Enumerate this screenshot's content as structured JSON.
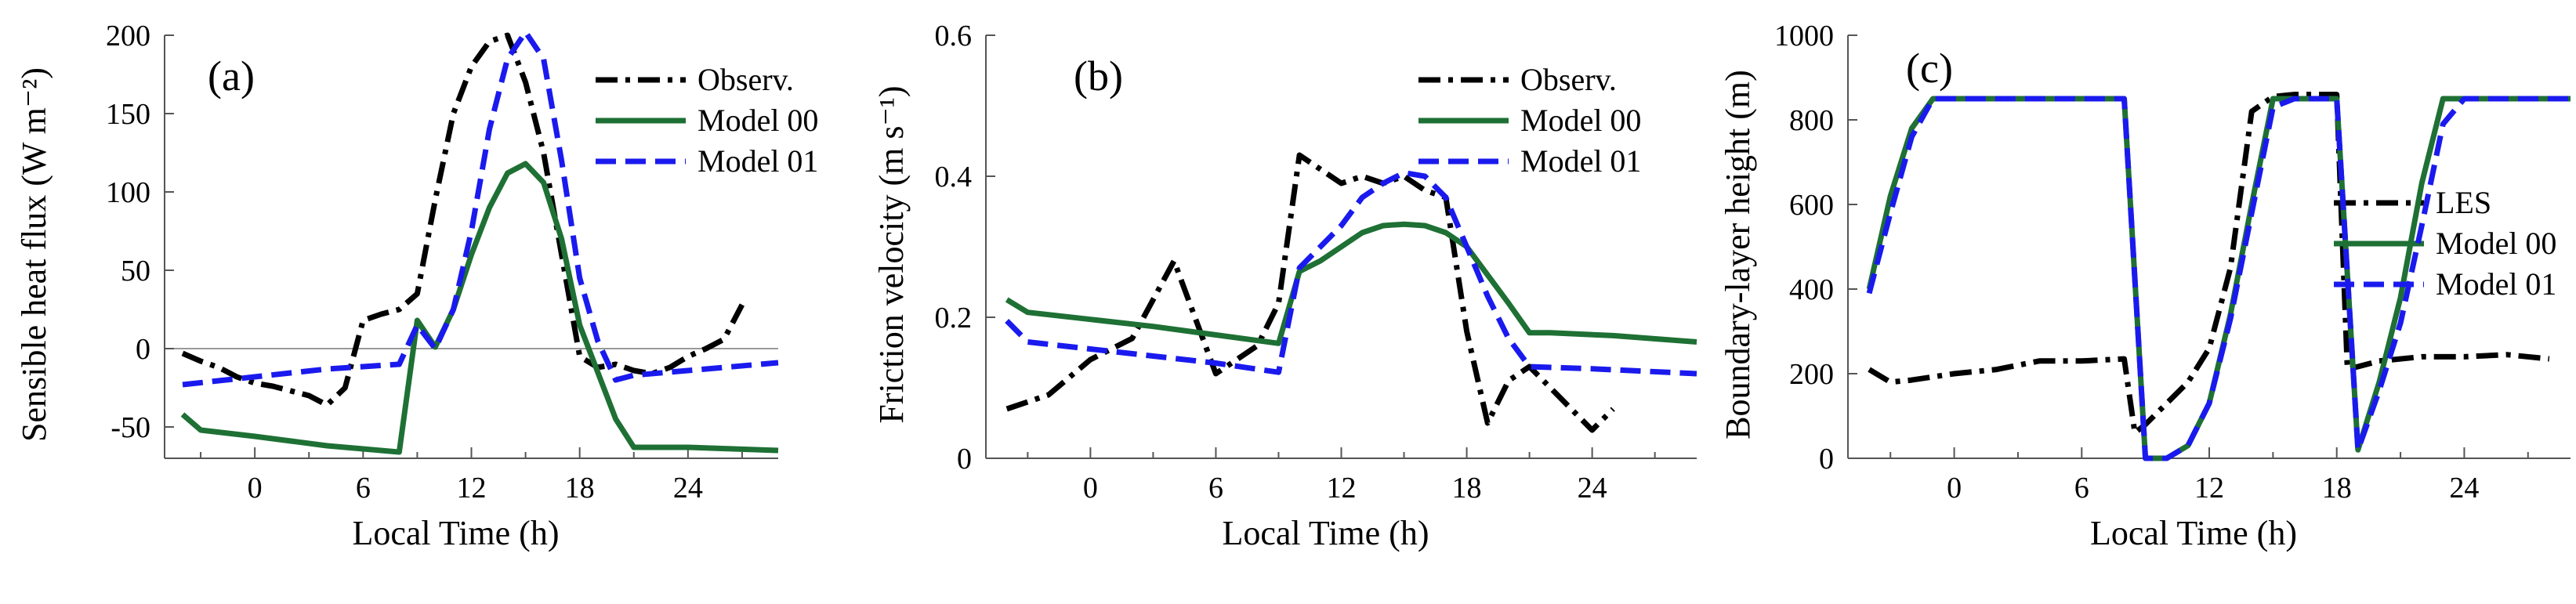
{
  "chart_data": [
    {
      "type": "line",
      "panel_label": "(a)",
      "xlabel": "Local Time (h)",
      "ylabel_main": "Sensible heat flux",
      "ylabel_unit": "(W m⁻²)",
      "xlim": [
        -5,
        29
      ],
      "ylim": [
        -70,
        200
      ],
      "xticks": [
        0,
        6,
        12,
        18,
        24
      ],
      "yticks": [
        -50,
        0,
        50,
        100,
        150,
        200
      ],
      "zero_line": true,
      "legend_position": "top-right",
      "series": [
        {
          "name": "Observ.",
          "color": "#000000",
          "style": "dashdot",
          "x": [
            -4,
            -3,
            -2,
            -1,
            0,
            1,
            2,
            3,
            4,
            5,
            6,
            7,
            8,
            9,
            10,
            11,
            12,
            13,
            14,
            15,
            16,
            17,
            18,
            19,
            20,
            21,
            22,
            23,
            24,
            25,
            26,
            27
          ],
          "y": [
            -3,
            -8,
            -12,
            -18,
            -22,
            -24,
            -27,
            -30,
            -36,
            -25,
            18,
            22,
            25,
            35,
            95,
            150,
            180,
            196,
            200,
            170,
            125,
            60,
            -5,
            -12,
            -10,
            -14,
            -16,
            -12,
            -5,
            0,
            6,
            28
          ]
        },
        {
          "name": "Model 00",
          "color": "#1e7034",
          "style": "solid",
          "x": [
            -4,
            -3,
            0,
            2,
            4,
            6,
            8,
            9,
            10,
            11,
            12,
            13,
            14,
            15,
            16,
            17,
            18,
            19,
            20,
            21,
            24,
            29
          ],
          "y": [
            -42,
            -52,
            -56,
            -59,
            -62,
            -64,
            -66,
            18,
            1,
            25,
            60,
            90,
            112,
            118,
            106,
            70,
            15,
            -15,
            -45,
            -63,
            -63,
            -65
          ]
        },
        {
          "name": "Model 01",
          "color": "#1a1aee",
          "style": "dashed",
          "x": [
            -4,
            0,
            4,
            8,
            9,
            10,
            11,
            12,
            13,
            14,
            15,
            16,
            17,
            18,
            19,
            20,
            21,
            24,
            29
          ],
          "y": [
            -23,
            -18,
            -13,
            -10,
            15,
            0,
            25,
            75,
            140,
            185,
            202,
            185,
            120,
            45,
            5,
            -20,
            -17,
            -14,
            -9
          ]
        }
      ]
    },
    {
      "type": "line",
      "panel_label": "(b)",
      "xlabel": "Local Time (h)",
      "ylabel_main": "Friction velocity",
      "ylabel_unit": "(m s⁻¹)",
      "xlim": [
        -5,
        29
      ],
      "ylim": [
        0,
        0.6
      ],
      "xticks": [
        0,
        6,
        12,
        18,
        24
      ],
      "yticks": [
        0,
        0.2,
        0.4,
        0.6
      ],
      "zero_line": false,
      "legend_position": "top-right",
      "series": [
        {
          "name": "Observ.",
          "color": "#000000",
          "style": "dashdot",
          "x": [
            -4,
            -2,
            0,
            2,
            4,
            6,
            8,
            9,
            10,
            11,
            12,
            13,
            14,
            15,
            16,
            17,
            18,
            19,
            20,
            21,
            22,
            23,
            24,
            25
          ],
          "y": [
            0.07,
            0.09,
            0.14,
            0.17,
            0.28,
            0.12,
            0.16,
            0.22,
            0.43,
            0.41,
            0.39,
            0.4,
            0.39,
            0.4,
            0.38,
            0.37,
            0.18,
            0.05,
            0.11,
            0.13,
            0.1,
            0.07,
            0.04,
            0.07
          ]
        },
        {
          "name": "Model 00",
          "color": "#1e7034",
          "style": "solid",
          "x": [
            -4,
            -3,
            0,
            3,
            6,
            9,
            10,
            11,
            12,
            13,
            14,
            15,
            16,
            17,
            18,
            19,
            20,
            21,
            22,
            25,
            29
          ],
          "y": [
            0.225,
            0.207,
            0.197,
            0.187,
            0.175,
            0.163,
            0.265,
            0.28,
            0.3,
            0.32,
            0.33,
            0.332,
            0.33,
            0.32,
            0.3,
            0.26,
            0.22,
            0.178,
            0.178,
            0.174,
            0.165
          ]
        },
        {
          "name": "Model 01",
          "color": "#1a1aee",
          "style": "dashed",
          "x": [
            -4,
            -3,
            0,
            3,
            6,
            9,
            10,
            11,
            12,
            13,
            14,
            15,
            16,
            17,
            18,
            19,
            20,
            21,
            24,
            29
          ],
          "y": [
            0.195,
            0.165,
            0.155,
            0.145,
            0.135,
            0.122,
            0.27,
            0.3,
            0.33,
            0.37,
            0.39,
            0.405,
            0.4,
            0.37,
            0.3,
            0.23,
            0.17,
            0.13,
            0.127,
            0.12
          ]
        }
      ]
    },
    {
      "type": "line",
      "panel_label": "(c)",
      "xlabel": "Local Time (h)",
      "ylabel_main": "Boundary-layer height",
      "ylabel_unit": "(m)",
      "xlim": [
        -5,
        29
      ],
      "ylim": [
        0,
        1000
      ],
      "xticks": [
        0,
        6,
        12,
        18,
        24
      ],
      "yticks": [
        0,
        200,
        400,
        600,
        800,
        1000
      ],
      "zero_line": false,
      "legend_position": "right",
      "series": [
        {
          "name": "LES",
          "color": "#000000",
          "style": "dashdot",
          "x": [
            -4,
            -3,
            -2,
            0,
            2,
            4,
            6,
            8,
            8.5,
            9,
            10,
            11,
            12,
            13,
            14,
            15,
            16,
            17,
            18,
            18.5,
            20,
            22,
            24,
            26,
            28
          ],
          "y": [
            210,
            180,
            185,
            200,
            210,
            230,
            230,
            235,
            60,
            80,
            130,
            180,
            260,
            450,
            820,
            855,
            860,
            860,
            860,
            210,
            230,
            240,
            240,
            245,
            235
          ]
        },
        {
          "name": "Model 00",
          "color": "#1e7034",
          "style": "solid",
          "x": [
            -4,
            -3,
            -2,
            -1,
            0,
            2,
            4,
            6,
            7,
            8,
            9,
            10,
            11,
            12,
            13,
            14,
            15,
            16,
            17,
            18,
            19,
            20,
            21,
            22,
            23,
            24,
            26,
            29
          ],
          "y": [
            400,
            620,
            780,
            850,
            850,
            850,
            850,
            850,
            850,
            850,
            0,
            0,
            30,
            130,
            340,
            600,
            850,
            850,
            850,
            850,
            20,
            180,
            380,
            650,
            850,
            850,
            850,
            850
          ]
        },
        {
          "name": "Model 01",
          "color": "#1a1aee",
          "style": "dashed",
          "x": [
            -4,
            -3,
            -2,
            -1,
            0,
            2,
            4,
            6,
            7,
            8,
            9,
            10,
            11,
            12,
            13,
            14,
            15,
            16,
            17,
            18,
            19,
            20,
            21,
            22,
            23,
            24,
            26,
            29
          ],
          "y": [
            390,
            580,
            760,
            850,
            850,
            850,
            850,
            850,
            850,
            850,
            0,
            0,
            30,
            130,
            330,
            580,
            830,
            850,
            850,
            850,
            20,
            160,
            320,
            550,
            790,
            850,
            850,
            850
          ]
        }
      ]
    }
  ]
}
